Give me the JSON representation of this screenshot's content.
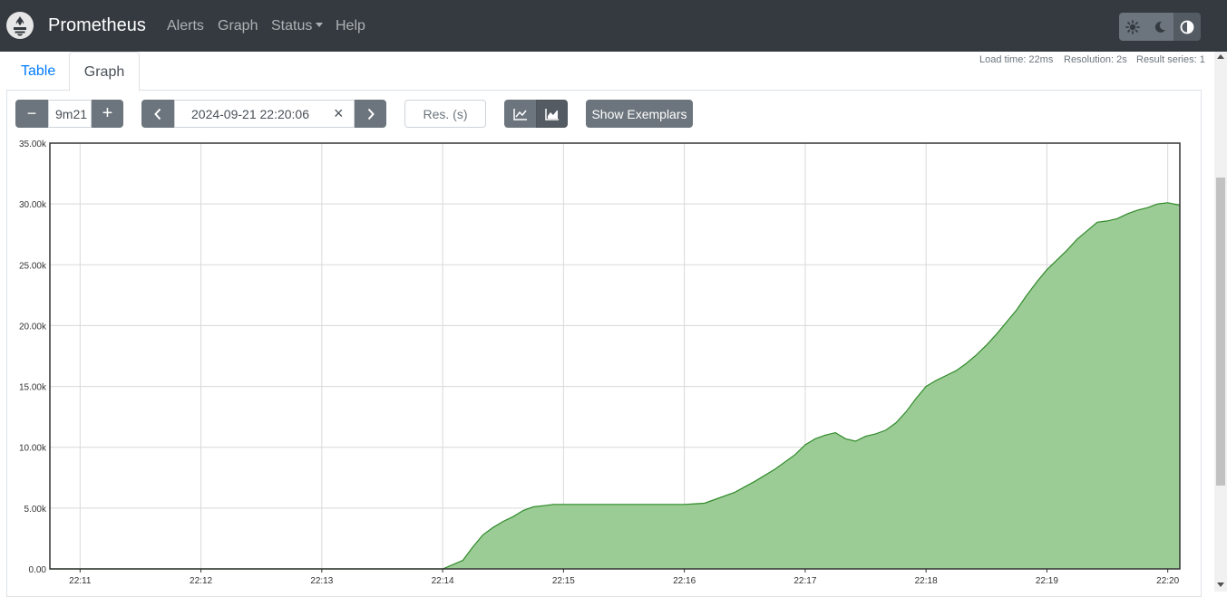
{
  "navbar": {
    "brand": "Prometheus",
    "links": [
      "Alerts",
      "Graph",
      "Status",
      "Help"
    ],
    "theme_buttons": [
      "light-theme",
      "dark-theme",
      "browser-default-theme"
    ]
  },
  "tabs": {
    "table": "Table",
    "graph": "Graph",
    "active": "Graph"
  },
  "stats": {
    "load_time": "Load time: 22ms",
    "resolution": "Resolution: 2s",
    "result_series": "Result series: 1"
  },
  "controls": {
    "decrease_range": "−",
    "range": "9m21",
    "increase_range": "+",
    "end_time": "2024-09-21 22:20:06",
    "clear_time": "×",
    "resolution_placeholder": "Res. (s)",
    "show_exemplars": "Show Exemplars",
    "chart_mode": "stacked"
  },
  "colors": {
    "navbar": "#343a40",
    "series_fill": "#9ccc95",
    "series_line": "#2f8a2a",
    "link": "#007bff"
  },
  "chart_data": {
    "type": "area",
    "title": "",
    "xlabel": "",
    "ylabel": "",
    "ylim": [
      0,
      35000
    ],
    "y_ticks": [
      "0.00",
      "5.00k",
      "10.00k",
      "15.00k",
      "20.00k",
      "25.00k",
      "30.00k",
      "35.00k"
    ],
    "y_tick_values": [
      0,
      5000,
      10000,
      15000,
      20000,
      25000,
      30000,
      35000
    ],
    "x_range": [
      "22:10:45",
      "22:20:06"
    ],
    "x_ticks": [
      "22:11",
      "22:12",
      "22:13",
      "22:14",
      "22:15",
      "22:16",
      "22:17",
      "22:18",
      "22:19",
      "22:20"
    ],
    "grid": true,
    "series": [
      {
        "x": [
          "22:10:45",
          "22:14:00",
          "22:14:10",
          "22:14:15",
          "22:14:20",
          "22:14:25",
          "22:14:30",
          "22:14:35",
          "22:14:40",
          "22:14:45",
          "22:14:50",
          "22:14:55",
          "22:15:00",
          "22:15:30",
          "22:16:00",
          "22:16:10",
          "22:16:15",
          "22:16:25",
          "22:16:35",
          "22:16:45",
          "22:16:50",
          "22:16:55",
          "22:17:00",
          "22:17:05",
          "22:17:10",
          "22:17:15",
          "22:17:20",
          "22:17:25",
          "22:17:30",
          "22:17:35",
          "22:17:40",
          "22:17:45",
          "22:17:50",
          "22:17:55",
          "22:18:00",
          "22:18:05",
          "22:18:10",
          "22:18:15",
          "22:18:20",
          "22:18:25",
          "22:18:30",
          "22:18:35",
          "22:18:40",
          "22:18:45",
          "22:18:50",
          "22:18:55",
          "22:19:00",
          "22:19:05",
          "22:19:10",
          "22:19:15",
          "22:19:20",
          "22:19:25",
          "22:19:30",
          "22:19:35",
          "22:19:40",
          "22:19:45",
          "22:19:50",
          "22:19:55",
          "22:20:00",
          "22:20:06"
        ],
        "y": [
          0,
          0,
          700,
          1800,
          2800,
          3400,
          3900,
          4300,
          4800,
          5100,
          5200,
          5300,
          5300,
          5300,
          5300,
          5400,
          5700,
          6300,
          7200,
          8200,
          8800,
          9400,
          10200,
          10700,
          11000,
          11200,
          10700,
          10500,
          10900,
          11100,
          11400,
          12000,
          12900,
          14000,
          15000,
          15500,
          15900,
          16300,
          16900,
          17600,
          18400,
          19300,
          20300,
          21300,
          22500,
          23600,
          24600,
          25400,
          26200,
          27100,
          27800,
          28500,
          28600,
          28800,
          29200,
          29500,
          29700,
          30000,
          30100,
          29900
        ]
      }
    ]
  }
}
